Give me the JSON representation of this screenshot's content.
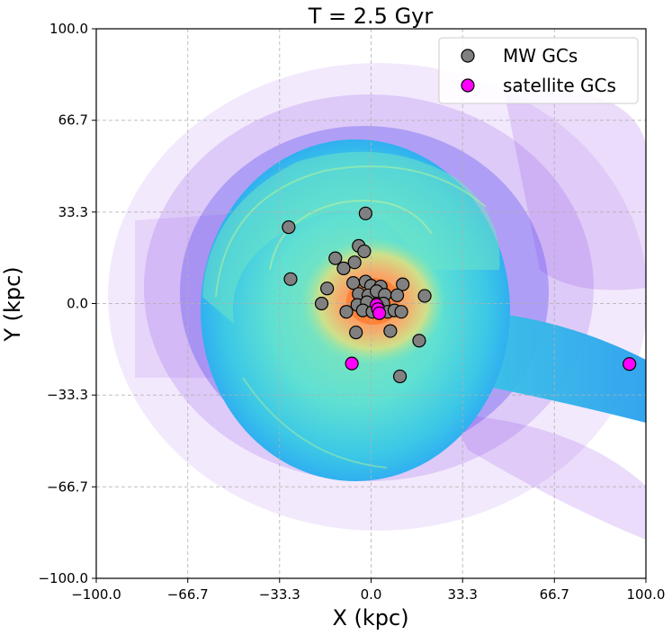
{
  "chart_data": {
    "type": "scatter",
    "title": "T = 2.5 Gyr",
    "xlabel": "X (kpc)",
    "ylabel": "Y (kpc)",
    "xlim": [
      -100,
      100
    ],
    "ylim": [
      -100,
      100
    ],
    "xticks": [
      -100,
      -66.7,
      -33.3,
      0,
      33.3,
      66.7,
      100
    ],
    "yticks": [
      -100,
      -66.7,
      -33.3,
      0,
      33.3,
      66.7,
      100
    ],
    "xtick_labels": [
      "−100.0",
      "−66.7",
      "−33.3",
      "0.0",
      "33.3",
      "66.7",
      "100.0"
    ],
    "ytick_labels": [
      "−100.0",
      "−66.7",
      "−33.3",
      "0.0",
      "33.3",
      "66.7",
      "100.0"
    ],
    "grid": true,
    "legend_position": "top-right",
    "background": "density map of stellar particles (rainbow colormap: purple outskirts, cyan/green disk, orange center)",
    "series": [
      {
        "name": "MW GCs",
        "color": "#808080",
        "points": [
          {
            "x": -30,
            "y": 27.8
          },
          {
            "x": -29.3,
            "y": 8.9
          },
          {
            "x": -2,
            "y": 32.8
          },
          {
            "x": -4.5,
            "y": 21
          },
          {
            "x": -2.5,
            "y": 19
          },
          {
            "x": -6,
            "y": 15
          },
          {
            "x": -13,
            "y": 16.5
          },
          {
            "x": -10,
            "y": 12.8
          },
          {
            "x": -6.5,
            "y": 7.5
          },
          {
            "x": -2,
            "y": 8
          },
          {
            "x": 0,
            "y": 6.5
          },
          {
            "x": 3.5,
            "y": 6.2
          },
          {
            "x": 11.5,
            "y": 7
          },
          {
            "x": 19.5,
            "y": 2.8
          },
          {
            "x": -16,
            "y": 5.5
          },
          {
            "x": -18,
            "y": 0
          },
          {
            "x": -4.5,
            "y": 3.5
          },
          {
            "x": -1,
            "y": 3
          },
          {
            "x": 2,
            "y": 4.5
          },
          {
            "x": 5,
            "y": 3.2
          },
          {
            "x": 9.5,
            "y": 3
          },
          {
            "x": -5,
            "y": -0.5
          },
          {
            "x": -1.5,
            "y": 0.5
          },
          {
            "x": 4.5,
            "y": 0
          },
          {
            "x": -9,
            "y": -3
          },
          {
            "x": -3,
            "y": -2.5
          },
          {
            "x": 0.5,
            "y": -3
          },
          {
            "x": 2.5,
            "y": -1.5
          },
          {
            "x": 6,
            "y": -3
          },
          {
            "x": 8.5,
            "y": -2.5
          },
          {
            "x": 11,
            "y": -3
          },
          {
            "x": 7,
            "y": -10
          },
          {
            "x": -5.5,
            "y": -10.5
          },
          {
            "x": 17.5,
            "y": -13.5
          },
          {
            "x": 10.5,
            "y": -26.5
          }
        ]
      },
      {
        "name": "satellite GCs",
        "color": "#ff00ff",
        "points": [
          {
            "x": 2,
            "y": -0.5
          },
          {
            "x": 2.5,
            "y": -2
          },
          {
            "x": 3,
            "y": -3.5
          },
          {
            "x": -7,
            "y": -21.8
          },
          {
            "x": 94,
            "y": -22
          }
        ]
      }
    ]
  }
}
